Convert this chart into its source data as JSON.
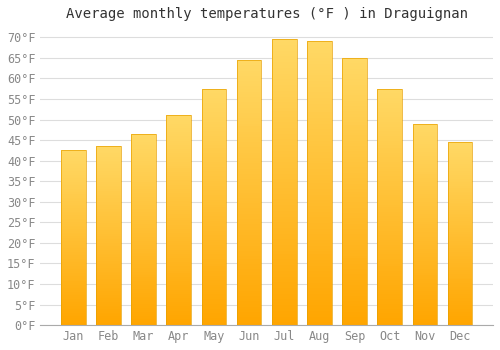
{
  "title": "Average monthly temperatures (°F ) in Draguignan",
  "months": [
    "Jan",
    "Feb",
    "Mar",
    "Apr",
    "May",
    "Jun",
    "Jul",
    "Aug",
    "Sep",
    "Oct",
    "Nov",
    "Dec"
  ],
  "values": [
    42.5,
    43.5,
    46.5,
    51.0,
    57.5,
    64.5,
    69.5,
    69.0,
    65.0,
    57.5,
    49.0,
    44.5
  ],
  "bar_color_bottom": "#FFA500",
  "bar_color_top": "#FFD966",
  "background_color": "#FFFFFF",
  "plot_bg_color": "#FFFFFF",
  "grid_color": "#DDDDDD",
  "title_color": "#333333",
  "tick_label_color": "#888888",
  "ylim": [
    0,
    72
  ],
  "yticks": [
    0,
    5,
    10,
    15,
    20,
    25,
    30,
    35,
    40,
    45,
    50,
    55,
    60,
    65,
    70
  ],
  "title_fontsize": 10,
  "tick_fontsize": 8.5
}
